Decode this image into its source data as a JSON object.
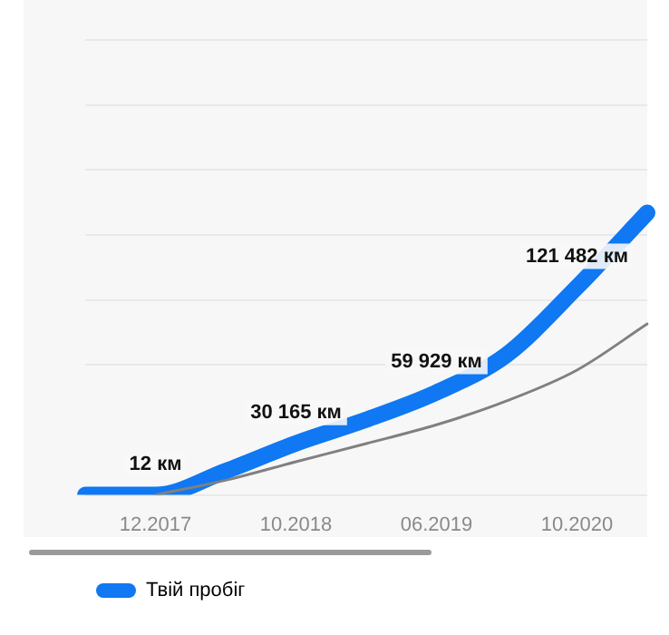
{
  "chart_data": {
    "type": "line",
    "categories": [
      null,
      "12.2017",
      null,
      "10.2018",
      null,
      "06.2019",
      null,
      "10.2020",
      null
    ],
    "series": [
      {
        "name": "Твій пробіг",
        "color": "#0f78f2",
        "values": [
          12,
          12,
          14000,
          30165,
          44000,
          59929,
          82000,
          121482,
          165000
        ],
        "value_labels": [
          null,
          "12 км",
          null,
          "30 165 км",
          null,
          "59 929 км",
          null,
          "121 482 км",
          null
        ]
      },
      {
        "color": "#808080",
        "values": [
          null,
          12,
          8600,
          19400,
          30000,
          41000,
          55000,
          73000,
          100000
        ],
        "marker": "none"
      }
    ],
    "ylim": [
      0,
      266000
    ],
    "yticks": [
      {
        "value": 0,
        "label": null
      },
      {
        "value": 76000,
        "label": null
      },
      {
        "value": 114000,
        "label": null
      },
      {
        "value": 152000,
        "label": null
      },
      {
        "value": 190000,
        "label": null
      },
      {
        "value": 228000,
        "label": null
      },
      {
        "value": 266000,
        "label": null
      }
    ],
    "grid": "y",
    "legend": "bottom",
    "tick_labels": "x"
  }
}
